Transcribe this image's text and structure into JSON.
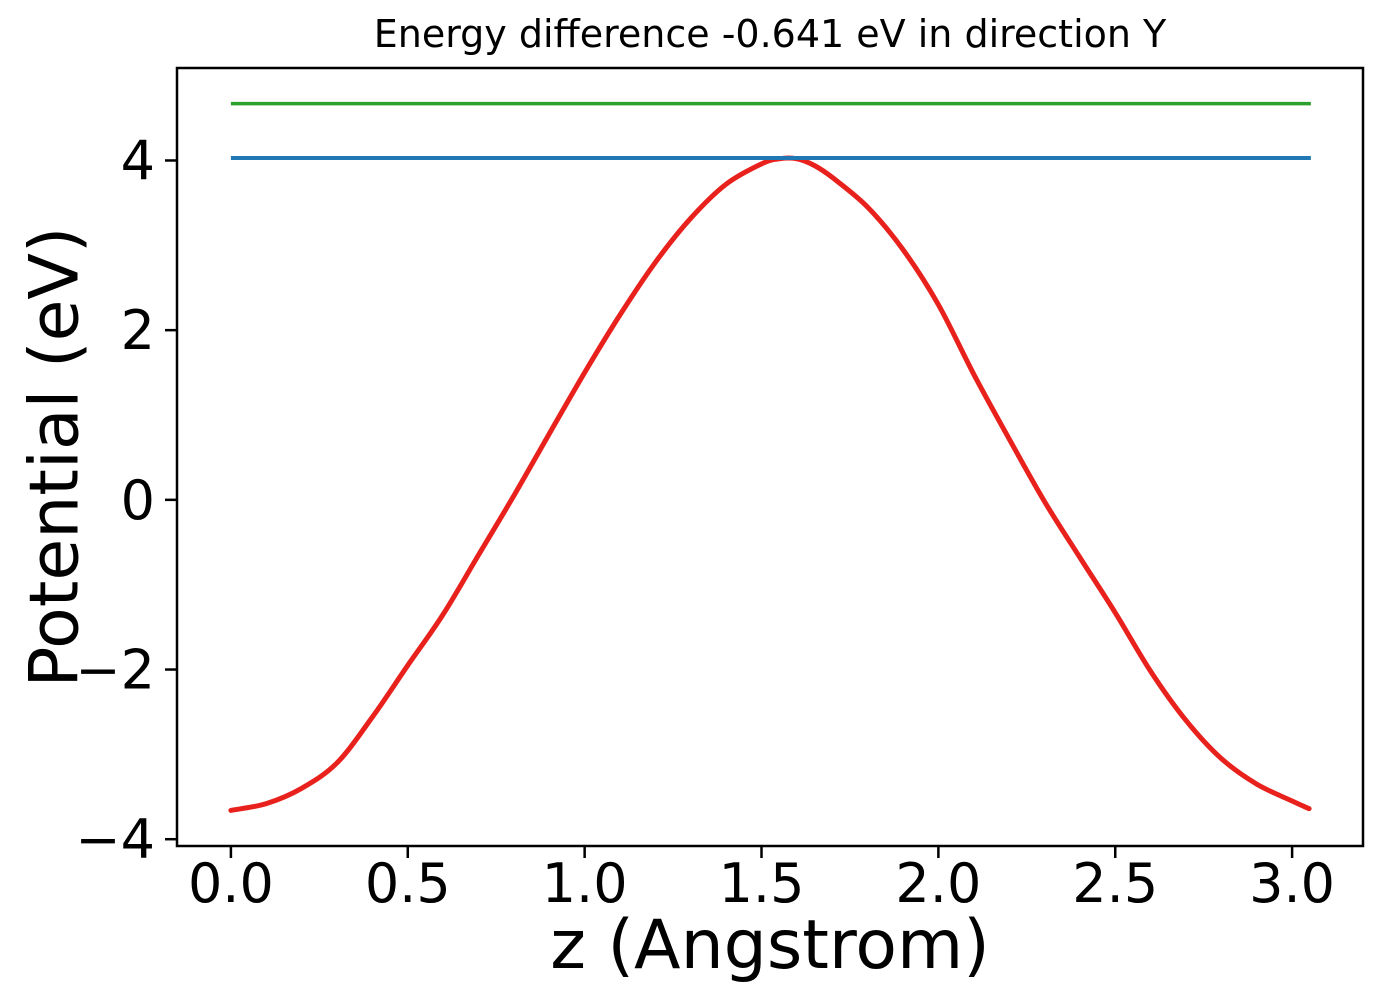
{
  "figure": {
    "title": "Energy difference -0.641 eV in direction Y",
    "xlabel": "z (Angstrom)",
    "ylabel": "Potential (eV)"
  },
  "chart_data": {
    "type": "line",
    "title": "Energy difference -0.641 eV in direction Y",
    "xlabel": "z (Angstrom)",
    "ylabel": "Potential (eV)",
    "grid": false,
    "legend": null,
    "xlim": [
      -0.1524,
      3.2004
    ],
    "ylim": [
      -4.08,
      5.09
    ],
    "x_ticks": [
      0.0,
      0.5,
      1.0,
      1.5,
      2.0,
      2.5,
      3.0
    ],
    "x_tick_labels": [
      "0.0",
      "0.5",
      "1.0",
      "1.5",
      "2.0",
      "2.5",
      "3.0"
    ],
    "y_ticks": [
      4,
      2,
      0,
      -2,
      -4
    ],
    "y_tick_labels": [
      "4",
      "2",
      "0",
      "−2",
      "−4"
    ],
    "energy_difference_label_eV": "-0.641",
    "series": [
      {
        "name": "potential-curve",
        "kind": "curve",
        "color": "#e8211d",
        "linewidth": 5,
        "x": [
          0.0,
          0.1,
          0.2,
          0.3,
          0.4,
          0.5,
          0.6,
          0.7,
          0.8,
          0.9,
          1.0,
          1.1,
          1.2,
          1.3,
          1.4,
          1.5,
          1.55,
          1.6,
          1.65,
          1.7,
          1.8,
          1.9,
          2.0,
          2.1,
          2.2,
          2.3,
          2.4,
          2.5,
          2.6,
          2.7,
          2.8,
          2.9,
          3.0,
          3.048
        ],
        "y": [
          -3.66,
          -3.58,
          -3.4,
          -3.1,
          -2.56,
          -1.95,
          -1.35,
          -0.65,
          0.05,
          0.78,
          1.5,
          2.18,
          2.8,
          3.32,
          3.72,
          3.96,
          4.02,
          4.02,
          3.94,
          3.8,
          3.45,
          2.95,
          2.3,
          1.48,
          0.72,
          -0.02,
          -0.68,
          -1.33,
          -2.02,
          -2.6,
          -3.05,
          -3.35,
          -3.55,
          -3.64
        ]
      },
      {
        "name": "reference-level-blue",
        "kind": "hline",
        "color": "#1f77b4",
        "linewidth": 4,
        "value": 4.029,
        "x_start": 0.0,
        "x_end": 3.053
      },
      {
        "name": "reference-level-green",
        "kind": "hline",
        "color": "#2ca02c",
        "linewidth": 3.5,
        "value": 4.67,
        "x_start": 0.0,
        "x_end": 3.053
      }
    ]
  },
  "colors": {
    "spine": "#000000",
    "tick": "#000000",
    "text": "#000000",
    "background": "#ffffff",
    "curve_red": "#e8211d",
    "line_blue": "#1f77b4",
    "line_green": "#2ca02c"
  }
}
